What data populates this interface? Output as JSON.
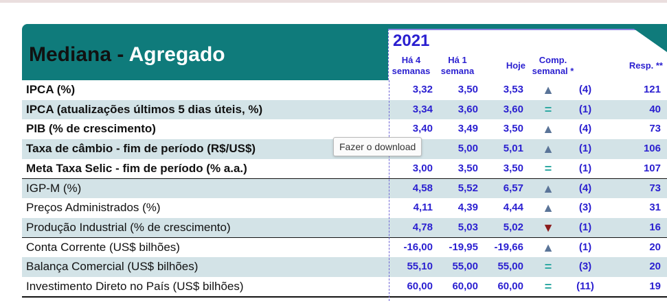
{
  "header": {
    "title_dark": "Mediana -",
    "title_light": "Agregado",
    "year": "2021",
    "columns": [
      [
        "Há 4",
        "semanas"
      ],
      [
        "Há 1",
        "semana"
      ],
      [
        "Hoje"
      ],
      [
        "Comp.",
        "semanal *"
      ],
      [
        "Resp. **"
      ]
    ]
  },
  "tooltip": "Fazer o download",
  "table": {
    "groups": [
      {
        "rows": [
          {
            "label": "IPCA (%)",
            "values": [
              "3,32",
              "3,50",
              "3,53"
            ],
            "trend": "▲",
            "comp": "(4)",
            "resp": "121"
          },
          {
            "label": "IPCA (atualizações últimos 5 dias úteis, %)",
            "values": [
              "3,34",
              "3,60",
              "3,60"
            ],
            "trend": "=",
            "comp": "(1)",
            "resp": "40"
          },
          {
            "label": "PIB (% de crescimento)",
            "values": [
              "3,40",
              "3,49",
              "3,50"
            ],
            "trend": "▲",
            "comp": "(4)",
            "resp": "73"
          },
          {
            "label": "Taxa de câmbio - fim de período (R$/US$)",
            "values": [
              null,
              "5,00",
              "5,01"
            ],
            "trend": "▲",
            "comp": "(1)",
            "resp": "106"
          },
          {
            "label": "Meta Taxa Selic - fim de período (% a.a.)",
            "values": [
              "3,00",
              "3,50",
              "3,50"
            ],
            "trend": "=",
            "comp": "(1)",
            "resp": "107"
          }
        ]
      },
      {
        "rows": [
          {
            "label": "IGP-M (%)",
            "values": [
              "4,58",
              "5,52",
              "6,57"
            ],
            "trend": "▲",
            "comp": "(4)",
            "resp": "73"
          },
          {
            "label": "Preços Administrados (%)",
            "values": [
              "4,11",
              "4,39",
              "4,44"
            ],
            "trend": "▲",
            "comp": "(3)",
            "resp": "31"
          },
          {
            "label": "Produção Industrial (% de crescimento)",
            "values": [
              "4,78",
              "5,03",
              "5,02"
            ],
            "trend": "▼",
            "comp": "(1)",
            "resp": "16"
          }
        ]
      },
      {
        "rows": [
          {
            "label": "Conta Corrente (US$ bilhões)",
            "values": [
              "-16,00",
              "-19,95",
              "-19,66"
            ],
            "trend": "▲",
            "comp": "(1)",
            "resp": "20"
          },
          {
            "label": "Balança Comercial (US$ bilhões)",
            "values": [
              "55,10",
              "55,00",
              "55,00"
            ],
            "trend": "=",
            "comp": "(3)",
            "resp": "20"
          },
          {
            "label": "Investimento Direto no País (US$ bilhões)",
            "values": [
              "60,00",
              "60,00",
              "60,00"
            ],
            "trend": "=",
            "comp": "(11)",
            "resp": "19"
          }
        ]
      }
    ]
  }
}
